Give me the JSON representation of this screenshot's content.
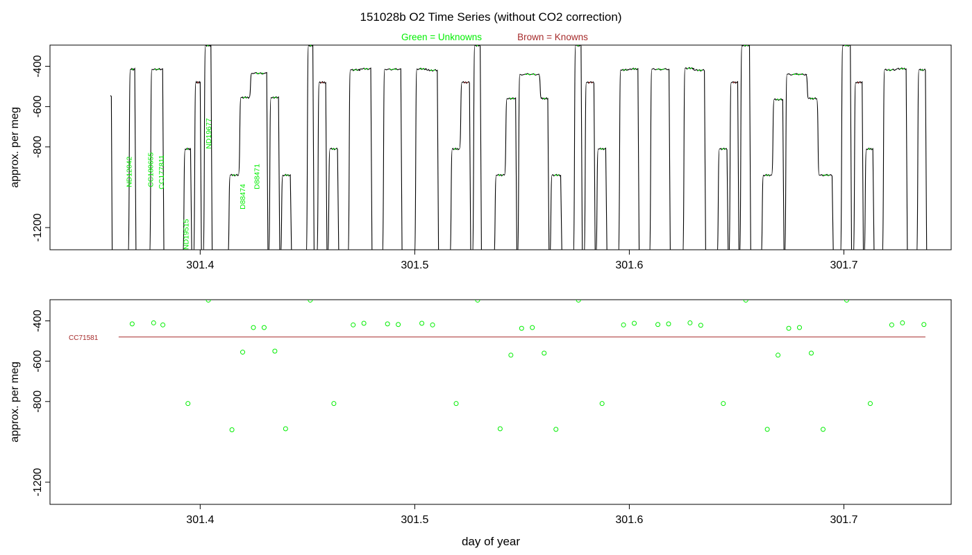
{
  "title": "151028b   O2 Time Series (without CO2 correction)",
  "legend": {
    "unknowns_label": "Green = Unknowns",
    "knowns_label": "Brown = Knowns"
  },
  "colors": {
    "unknowns": "#00ee00",
    "knowns": "#a52a2a",
    "trace": "#000000",
    "axis": "#000000"
  },
  "chart_data": [
    {
      "type": "line",
      "ylabel": "approx. per meg",
      "xlabel": "",
      "xlim": [
        301.33,
        301.75
      ],
      "ylim": [
        -1310,
        -295
      ],
      "y_reversed": true,
      "xticks": [
        301.4,
        301.5,
        301.6,
        301.7
      ],
      "xtick_labels": [
        "301.4",
        "301.5",
        "301.6",
        "301.7"
      ],
      "yticks": [
        -400,
        -600,
        -800,
        -1200
      ],
      "ytick_labels": [
        "-400",
        "-600",
        "-800",
        "-1200"
      ],
      "trace": {
        "start": {
          "x": 301.3582,
          "y": -545
        },
        "plateaus": [
          {
            "x0": 301.3675,
            "x1": 301.3695,
            "y": -415,
            "kind": "unknown"
          },
          {
            "x0": 301.3775,
            "x1": 301.3825,
            "y": -415,
            "kind": "unknown"
          },
          {
            "x0": 301.393,
            "x1": 301.3955,
            "y": -810,
            "kind": "unknown"
          },
          {
            "x0": 301.398,
            "x1": 301.4,
            "y": -480,
            "kind": "known"
          },
          {
            "x0": 301.4025,
            "x1": 301.405,
            "y": -297,
            "kind": "unknown"
          },
          {
            "x0": 301.414,
            "x1": 301.4175,
            "y": -940,
            "kind": "unknown"
          },
          {
            "x0": 301.419,
            "x1": 301.4225,
            "y": -555,
            "kind": "unknown"
          },
          {
            "x0": 301.424,
            "x1": 301.431,
            "y": -435,
            "kind": "unknown"
          },
          {
            "x0": 301.433,
            "x1": 301.4365,
            "y": -555,
            "kind": "unknown"
          },
          {
            "x0": 301.4385,
            "x1": 301.442,
            "y": -940,
            "kind": "unknown"
          },
          {
            "x0": 301.4505,
            "x1": 301.4525,
            "y": -297,
            "kind": "unknown"
          },
          {
            "x0": 301.4555,
            "x1": 301.4585,
            "y": -480,
            "kind": "known"
          },
          {
            "x0": 301.4605,
            "x1": 301.464,
            "y": -810,
            "kind": "unknown"
          },
          {
            "x0": 301.47,
            "x1": 301.4745,
            "y": -418,
            "kind": "unknown"
          },
          {
            "x0": 301.475,
            "x1": 301.4795,
            "y": -413,
            "kind": "unknown"
          },
          {
            "x0": 301.486,
            "x1": 301.4935,
            "y": -415,
            "kind": "unknown"
          },
          {
            "x0": 301.501,
            "x1": 301.5055,
            "y": -413,
            "kind": "unknown"
          },
          {
            "x0": 301.506,
            "x1": 301.5105,
            "y": -420,
            "kind": "unknown"
          },
          {
            "x0": 301.5175,
            "x1": 301.5205,
            "y": -810,
            "kind": "unknown"
          },
          {
            "x0": 301.522,
            "x1": 301.5255,
            "y": -480,
            "kind": "known"
          },
          {
            "x0": 301.528,
            "x1": 301.5305,
            "y": -297,
            "kind": "unknown"
          },
          {
            "x0": 301.538,
            "x1": 301.5415,
            "y": -940,
            "kind": "unknown"
          },
          {
            "x0": 301.543,
            "x1": 301.547,
            "y": -560,
            "kind": "unknown"
          },
          {
            "x0": 301.549,
            "x1": 301.558,
            "y": -440,
            "kind": "unknown"
          },
          {
            "x0": 301.559,
            "x1": 301.562,
            "y": -560,
            "kind": "unknown"
          },
          {
            "x0": 301.564,
            "x1": 301.568,
            "y": -940,
            "kind": "unknown"
          },
          {
            "x0": 301.575,
            "x1": 301.5775,
            "y": -297,
            "kind": "unknown"
          },
          {
            "x0": 301.58,
            "x1": 301.5835,
            "y": -480,
            "kind": "known"
          },
          {
            "x0": 301.5855,
            "x1": 301.589,
            "y": -810,
            "kind": "unknown"
          },
          {
            "x0": 301.596,
            "x1": 301.5995,
            "y": -418,
            "kind": "unknown"
          },
          {
            "x0": 301.6005,
            "x1": 301.604,
            "y": -413,
            "kind": "unknown"
          },
          {
            "x0": 301.6105,
            "x1": 301.6185,
            "y": -415,
            "kind": "unknown"
          },
          {
            "x0": 301.626,
            "x1": 301.63,
            "y": -410,
            "kind": "unknown"
          },
          {
            "x0": 301.6305,
            "x1": 301.635,
            "y": -420,
            "kind": "unknown"
          },
          {
            "x0": 301.642,
            "x1": 301.6455,
            "y": -810,
            "kind": "unknown"
          },
          {
            "x0": 301.6475,
            "x1": 301.6505,
            "y": -480,
            "kind": "known"
          },
          {
            "x0": 301.6525,
            "x1": 301.656,
            "y": -297,
            "kind": "unknown"
          },
          {
            "x0": 301.6625,
            "x1": 301.666,
            "y": -940,
            "kind": "unknown"
          },
          {
            "x0": 301.6675,
            "x1": 301.6715,
            "y": -565,
            "kind": "unknown"
          },
          {
            "x0": 301.6735,
            "x1": 301.6825,
            "y": -440,
            "kind": "unknown"
          },
          {
            "x0": 301.6835,
            "x1": 301.687,
            "y": -560,
            "kind": "unknown"
          },
          {
            "x0": 301.6885,
            "x1": 301.6945,
            "y": -940,
            "kind": "unknown"
          },
          {
            "x0": 301.6995,
            "x1": 301.703,
            "y": -297,
            "kind": "unknown"
          },
          {
            "x0": 301.7055,
            "x1": 301.7085,
            "y": -480,
            "kind": "known"
          },
          {
            "x0": 301.7105,
            "x1": 301.7135,
            "y": -810,
            "kind": "unknown"
          },
          {
            "x0": 301.719,
            "x1": 301.724,
            "y": -418,
            "kind": "unknown"
          },
          {
            "x0": 301.725,
            "x1": 301.729,
            "y": -412,
            "kind": "unknown"
          },
          {
            "x0": 301.735,
            "x1": 301.738,
            "y": -418,
            "kind": "unknown"
          }
        ]
      },
      "annotations": [
        {
          "text": "ND12042",
          "x": 301.368,
          "y": -1000
        },
        {
          "text": "CC180655",
          "x": 301.378,
          "y": -1000
        },
        {
          "text": "CC177811",
          "x": 301.383,
          "y": -1010
        },
        {
          "text": "ND19515",
          "x": 301.3945,
          "y": -1310
        },
        {
          "text": "ND19677",
          "x": 301.405,
          "y": -810
        },
        {
          "text": "D88474",
          "x": 301.421,
          "y": -1110
        },
        {
          "text": "D88471",
          "x": 301.4275,
          "y": -1010
        }
      ]
    },
    {
      "type": "scatter",
      "ylabel": "approx. per meg",
      "xlabel": "day of year",
      "xlim": [
        301.33,
        301.75
      ],
      "ylim": [
        -1310,
        -295
      ],
      "y_reversed": true,
      "xticks": [
        301.4,
        301.5,
        301.6,
        301.7
      ],
      "xtick_labels": [
        "301.4",
        "301.5",
        "301.6",
        "301.7"
      ],
      "yticks": [
        -400,
        -600,
        -800,
        -1200
      ],
      "ytick_labels": [
        "-400",
        "-600",
        "-800",
        "-1200"
      ],
      "reference_line": {
        "label": "CC71581",
        "x0": 301.362,
        "x1": 301.738,
        "y": -480
      },
      "unknowns": {
        "x": [
          301.3683,
          301.3783,
          301.3826,
          301.3943,
          301.4038,
          301.4148,
          301.4198,
          301.4248,
          301.4298,
          301.4348,
          301.4398,
          301.4513,
          301.4623,
          301.4713,
          301.4763,
          301.4873,
          301.4923,
          301.5033,
          301.5083,
          301.5193,
          301.5293,
          301.5398,
          301.5448,
          301.5498,
          301.5548,
          301.5603,
          301.5658,
          301.5763,
          301.5873,
          301.5973,
          301.6023,
          301.6133,
          301.6183,
          301.6283,
          301.6333,
          301.6438,
          301.6543,
          301.6643,
          301.6693,
          301.6743,
          301.6793,
          301.6848,
          301.6903,
          301.7013,
          301.7123,
          301.7223,
          301.7273,
          301.7373
        ],
        "y": [
          -415,
          -410,
          -420,
          -810,
          -297,
          -940,
          -555,
          -433,
          -433,
          -550,
          -935,
          -297,
          -810,
          -420,
          -412,
          -415,
          -418,
          -412,
          -420,
          -810,
          -297,
          -935,
          -570,
          -437,
          -433,
          -560,
          -938,
          -297,
          -810,
          -420,
          -412,
          -418,
          -415,
          -410,
          -422,
          -810,
          -297,
          -938,
          -570,
          -437,
          -433,
          -560,
          -938,
          -297,
          -810,
          -420,
          -410,
          -418
        ]
      }
    }
  ]
}
